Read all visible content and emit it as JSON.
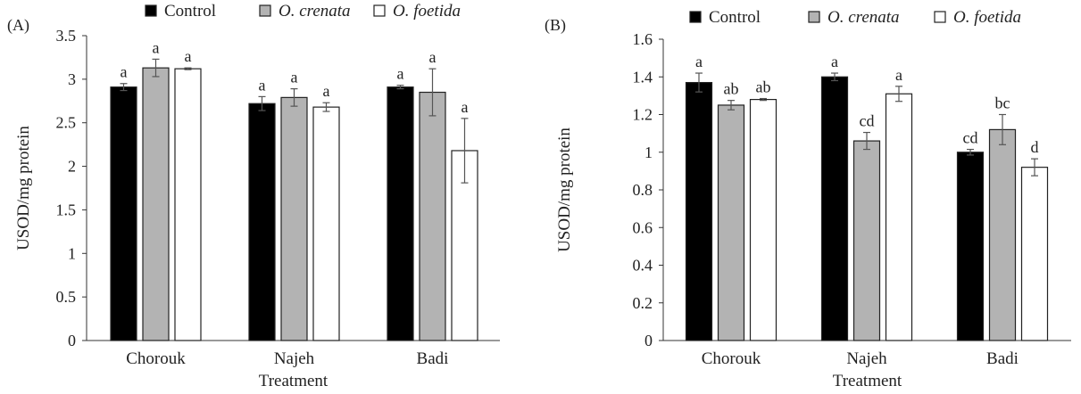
{
  "chart_data": [
    {
      "panel_label": "(A)",
      "type": "bar",
      "xlabel": "Treatment",
      "ylabel": "USOD/mg protein",
      "ylim": [
        0,
        3.5
      ],
      "yticks": [
        0,
        0.5,
        1,
        1.5,
        2,
        2.5,
        3,
        3.5
      ],
      "ytick_labels": [
        "0",
        "0.5",
        "1",
        "1.5",
        "2",
        "2.5",
        "3",
        "3.5"
      ],
      "grid": false,
      "legend_position": "top",
      "categories": [
        "Chorouk",
        "Najeh",
        "Badi"
      ],
      "series": [
        {
          "name": "Control",
          "italic": false,
          "fill": "#000000",
          "values": [
            2.91,
            2.72,
            2.91
          ],
          "errors": [
            0.04,
            0.08,
            0.02
          ],
          "labels": [
            "a",
            "a",
            "a"
          ]
        },
        {
          "name": "O. crenata",
          "italic": true,
          "fill": "#b3b3b3",
          "values": [
            3.13,
            2.79,
            2.85
          ],
          "errors": [
            0.1,
            0.1,
            0.27
          ],
          "labels": [
            "a",
            "a",
            "a"
          ]
        },
        {
          "name": "O. foetida",
          "italic": true,
          "fill": "#ffffff",
          "values": [
            3.12,
            2.68,
            2.18
          ],
          "errors": [
            0.01,
            0.05,
            0.37
          ],
          "labels": [
            "a",
            "a",
            "a"
          ]
        }
      ]
    },
    {
      "panel_label": "(B)",
      "type": "bar",
      "xlabel": "Treatment",
      "ylabel": "USOD/mg protein",
      "ylim": [
        0,
        1.6
      ],
      "yticks": [
        0,
        0.2,
        0.4,
        0.6,
        0.8,
        1,
        1.2,
        1.4,
        1.6
      ],
      "ytick_labels": [
        "0",
        "0.2",
        "0.4",
        "0.6",
        "0.8",
        "1",
        "1.2",
        "1.4",
        "1.6"
      ],
      "grid": false,
      "legend_position": "top",
      "categories": [
        "Chorouk",
        "Najeh",
        "Badi"
      ],
      "series": [
        {
          "name": "Control",
          "italic": false,
          "fill": "#000000",
          "values": [
            1.37,
            1.4,
            1.0
          ],
          "errors": [
            0.05,
            0.02,
            0.015
          ],
          "labels": [
            "a",
            "a",
            "cd"
          ]
        },
        {
          "name": "O. crenata",
          "italic": true,
          "fill": "#b3b3b3",
          "values": [
            1.25,
            1.06,
            1.12
          ],
          "errors": [
            0.025,
            0.045,
            0.08
          ],
          "labels": [
            "ab",
            "cd",
            "bc"
          ]
        },
        {
          "name": "O. foetida",
          "italic": true,
          "fill": "#ffffff",
          "values": [
            1.28,
            1.31,
            0.92
          ],
          "errors": [
            0.005,
            0.04,
            0.045
          ],
          "labels": [
            "ab",
            "a",
            "d"
          ]
        }
      ]
    }
  ]
}
